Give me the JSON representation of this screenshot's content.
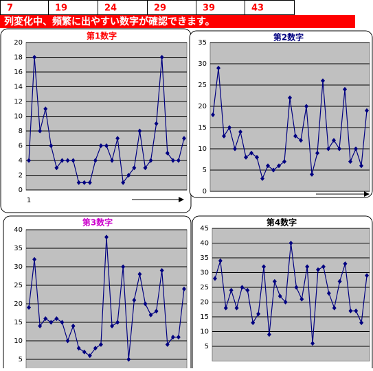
{
  "header_row": [
    7,
    19,
    24,
    29,
    39,
    43
  ],
  "banner": "列変化中、頻繁に出やすい数字が確認できます。",
  "chart_data": [
    {
      "type": "line",
      "title": "第1数字",
      "title_color": "#ff0000",
      "color": "#000080",
      "categories": [
        "1",
        null,
        null,
        null,
        null,
        null,
        null,
        null,
        null,
        null,
        null,
        null,
        null,
        null,
        null,
        null,
        null,
        null,
        null,
        null,
        null,
        null,
        null,
        null,
        null,
        null,
        null,
        null,
        null
      ],
      "values": [
        4,
        18,
        8,
        11,
        6,
        3,
        4,
        4,
        4,
        1,
        1,
        1,
        4,
        6,
        6,
        4,
        7,
        1,
        2,
        3,
        8,
        3,
        4,
        9,
        18,
        5,
        4,
        4,
        7
      ],
      "ylim": [
        0,
        20
      ],
      "yticks": [
        0,
        2,
        4,
        6,
        8,
        10,
        12,
        14,
        16,
        18,
        20
      ],
      "grid": true
    },
    {
      "type": "line",
      "title": "第2数字",
      "title_color": "#000080",
      "color": "#000080",
      "values": [
        18,
        29,
        13,
        15,
        10,
        14,
        8,
        9,
        8,
        3,
        6,
        5,
        6,
        7,
        22,
        13,
        12,
        20,
        4,
        9,
        26,
        10,
        12,
        10,
        24,
        7,
        10,
        6,
        19
      ],
      "ylim": [
        0,
        35
      ],
      "yticks": [
        0,
        5,
        10,
        15,
        20,
        25,
        30,
        35
      ],
      "grid": true
    },
    {
      "type": "line",
      "title": "第3数字",
      "title_color": "#cc00cc",
      "color": "#000080",
      "values": [
        19,
        32,
        14,
        16,
        15,
        16,
        15,
        10,
        14,
        8,
        7,
        6,
        8,
        9,
        38,
        14,
        15,
        30,
        5,
        21,
        28,
        20,
        17,
        18,
        29,
        9,
        11,
        11,
        24
      ],
      "ylim": [
        0,
        40
      ],
      "yticks": [
        5,
        10,
        15,
        20,
        25,
        30,
        35,
        40
      ],
      "grid": true
    },
    {
      "type": "line",
      "title": "第4数字",
      "title_color": "#000000",
      "color": "#000080",
      "values": [
        28,
        34,
        18,
        24,
        18,
        25,
        24,
        13,
        16,
        32,
        9,
        27,
        22,
        20,
        40,
        25,
        21,
        32,
        6,
        31,
        32,
        23,
        18,
        27,
        33,
        17,
        17,
        13,
        29
      ],
      "ylim": [
        0,
        45
      ],
      "yticks": [
        5,
        10,
        15,
        20,
        25,
        30,
        35,
        40,
        45
      ],
      "grid": true
    }
  ]
}
